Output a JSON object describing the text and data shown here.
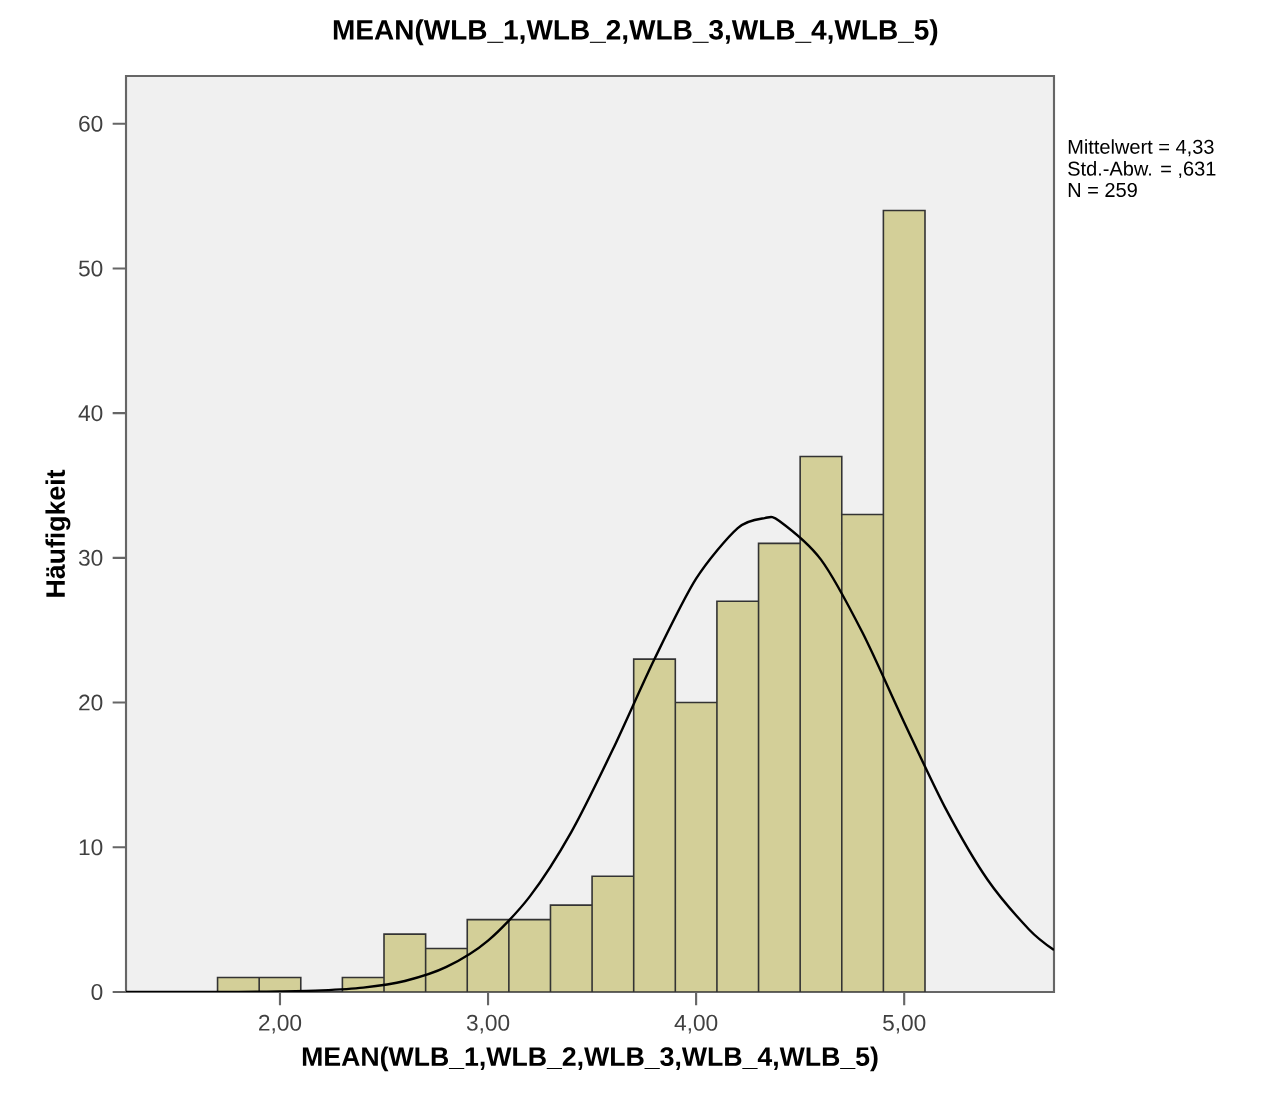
{
  "chart_data": {
    "type": "histogram",
    "title": "MEAN(WLB_1,WLB_2,WLB_3,WLB_4,WLB_5)",
    "xlabel": "MEAN(WLB_1,WLB_2,WLB_3,WLB_4,WLB_5)",
    "ylabel": "Häufigkeit",
    "bins": [
      1.7,
      1.9,
      2.1,
      2.3,
      2.5,
      2.7,
      2.9,
      3.1,
      3.3,
      3.5,
      3.7,
      3.9,
      4.1,
      4.3,
      4.5,
      4.7,
      4.9,
      5.1
    ],
    "values": [
      1,
      1,
      0,
      1,
      4,
      3,
      5,
      5,
      6,
      8,
      23,
      20,
      27,
      31,
      37,
      33,
      54
    ],
    "color": "#d3cf98",
    "series": [
      {
        "type": "line",
        "color": "#000000",
        "x": [
          1.26,
          1.8,
          2.0,
          2.2,
          2.4,
          2.6,
          2.8,
          3.0,
          3.2,
          3.4,
          3.6,
          3.8,
          4.0,
          4.2,
          4.33,
          4.4,
          4.6,
          4.8,
          5.0,
          5.2,
          5.4,
          5.6,
          5.72
        ],
        "values": [
          0,
          0.01,
          0.04,
          0.11,
          0.3,
          0.76,
          1.73,
          3.55,
          6.59,
          11.05,
          16.77,
          23.01,
          28.56,
          32.06,
          32.75,
          32.55,
          29.88,
          24.82,
          18.63,
          12.65,
          7.77,
          4.32,
          2.9
        ]
      }
    ],
    "xlim": [
      1.26,
      5.72
    ],
    "ylim": [
      0,
      63.3
    ],
    "xticks": [
      {
        "value": 2,
        "label": "2,00"
      },
      {
        "value": 3,
        "label": "3,00"
      },
      {
        "value": 4,
        "label": "4,00"
      },
      {
        "value": 5,
        "label": "5,00"
      }
    ],
    "yticks": [
      0,
      10,
      20,
      30,
      40,
      50,
      60
    ],
    "annotations": [
      "Mittelwert = 4,33",
      "Std.-Abw. = ,631",
      "N = 259"
    ]
  }
}
